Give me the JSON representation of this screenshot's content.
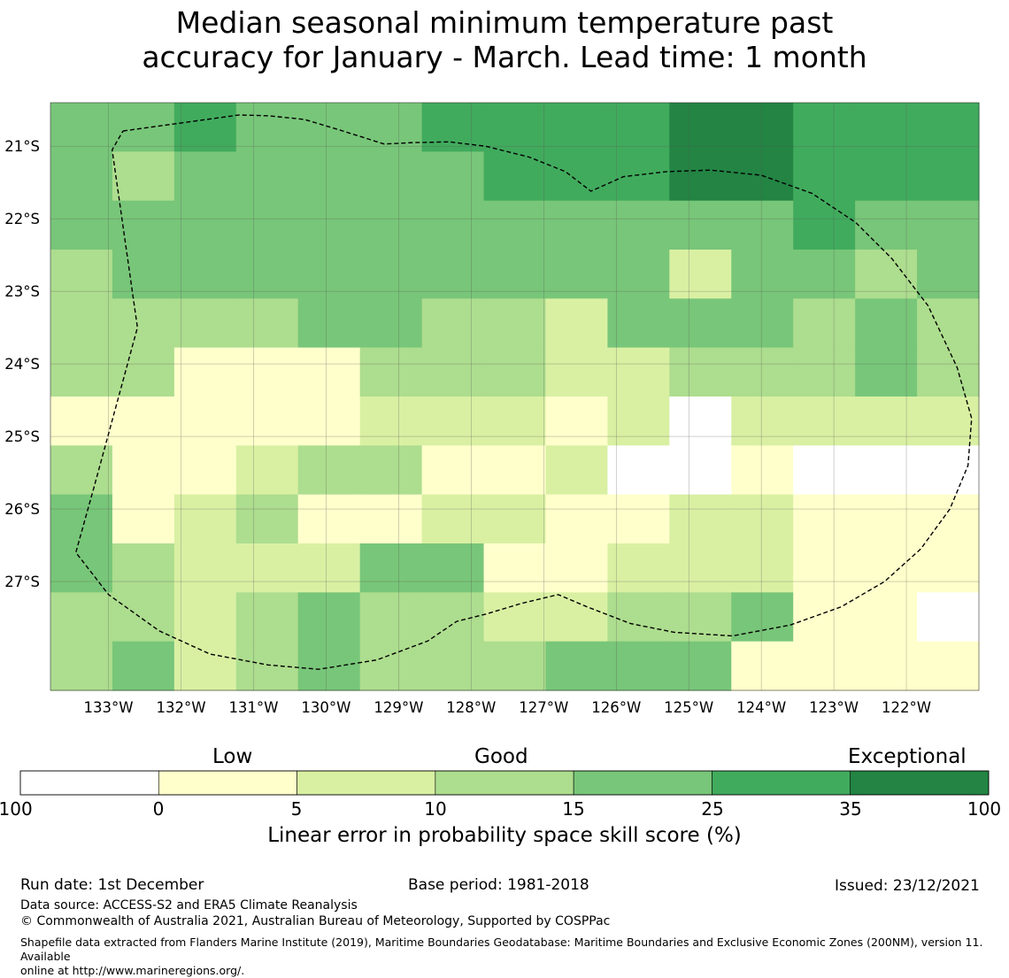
{
  "title": {
    "line1": "Median seasonal minimum temperature past",
    "line2": "accuracy for January - March. Lead time: 1 month"
  },
  "map": {
    "lon_range": [
      -133.8,
      -121.0
    ],
    "lat_range": [
      -28.5,
      -20.4
    ],
    "lon_ticks": [
      "133°W",
      "132°W",
      "131°W",
      "130°W",
      "129°W",
      "128°W",
      "127°W",
      "126°W",
      "125°W",
      "124°W",
      "123°W",
      "122°W"
    ],
    "lat_ticks": [
      "21°S",
      "22°S",
      "23°S",
      "24°S",
      "25°S",
      "26°S",
      "27°S"
    ],
    "cell_size_deg": [
      0.833,
      0.556
    ],
    "grid_columns": 15,
    "grid_rows": 12,
    "skill_category_grid": [
      "445444555566555",
      "434444455566555",
      "444444444444544",
      "344444444424434",
      "333344332444343",
      "331113332233343",
      "111112221202222",
      "311233112001000",
      "412311221122111",
      "432224411222111",
      "332343322334110",
      "342343334441111"
    ],
    "categories": [
      "below 0",
      "0 to 5",
      "5 to 10",
      "10 to 15",
      "15 to 25",
      "25 to 35",
      "35 to 100"
    ],
    "category_colors": [
      "#ffffff",
      "#ffffcc",
      "#d9f0a3",
      "#addd8e",
      "#78c679",
      "#41ab5d",
      "#238443"
    ],
    "boundary_lonlat": [
      [
        -132.8,
        -20.79
      ],
      [
        -131.2,
        -20.57
      ],
      [
        -130.8,
        -20.58
      ],
      [
        -130.3,
        -20.63
      ],
      [
        -129.8,
        -20.78
      ],
      [
        -129.2,
        -20.97
      ],
      [
        -128.8,
        -20.95
      ],
      [
        -128.3,
        -20.94
      ],
      [
        -127.8,
        -21.0
      ],
      [
        -127.2,
        -21.15
      ],
      [
        -126.7,
        -21.35
      ],
      [
        -126.35,
        -21.62
      ],
      [
        -125.9,
        -21.42
      ],
      [
        -125.3,
        -21.35
      ],
      [
        -124.7,
        -21.33
      ],
      [
        -124.0,
        -21.4
      ],
      [
        -123.3,
        -21.65
      ],
      [
        -122.7,
        -22.05
      ],
      [
        -122.2,
        -22.55
      ],
      [
        -121.7,
        -23.2
      ],
      [
        -121.3,
        -24.05
      ],
      [
        -121.1,
        -24.75
      ],
      [
        -121.15,
        -25.4
      ],
      [
        -121.4,
        -26.0
      ],
      [
        -121.8,
        -26.55
      ],
      [
        -122.3,
        -27.0
      ],
      [
        -122.9,
        -27.35
      ],
      [
        -123.6,
        -27.6
      ],
      [
        -124.4,
        -27.75
      ],
      [
        -125.2,
        -27.7
      ],
      [
        -125.8,
        -27.58
      ],
      [
        -126.4,
        -27.35
      ],
      [
        -126.8,
        -27.18
      ],
      [
        -127.3,
        -27.3
      ],
      [
        -127.8,
        -27.45
      ],
      [
        -128.2,
        -27.55
      ],
      [
        -128.6,
        -27.82
      ],
      [
        -129.3,
        -28.08
      ],
      [
        -130.1,
        -28.21
      ],
      [
        -130.8,
        -28.15
      ],
      [
        -131.6,
        -28.0
      ],
      [
        -132.3,
        -27.68
      ],
      [
        -133.0,
        -27.18
      ],
      [
        -133.45,
        -26.6
      ],
      [
        -133.2,
        -25.7
      ],
      [
        -132.6,
        -23.5
      ],
      [
        -132.95,
        -21.05
      ],
      [
        -132.8,
        -20.79
      ]
    ],
    "boundary_dash_color": "#000000"
  },
  "colorbar": {
    "headers": [
      "Low",
      "Good",
      "Exceptional"
    ],
    "tick_labels": [
      "-100",
      "0",
      "5",
      "10",
      "15",
      "25",
      "35",
      "100"
    ],
    "label": "Linear error in probability space skill score (%)"
  },
  "footer": {
    "run_date": "Run date: 1st December",
    "base_period": "Base period: 1981-2018",
    "issued": "Issued: 23/12/2021",
    "data_source": "Data source: ACCESS-S2 and ERA5 Climate Reanalysis",
    "copyright": "© Commonwealth of Australia 2021, Australian Bureau of Meteorology, Supported by COSPPac",
    "shapefile_line1": "Shapefile data extracted from Flanders Marine Institute (2019), Maritime Boundaries Geodatabase: Maritime Boundaries and Exclusive Economic Zones (200NM), version 11. Available",
    "shapefile_line2": "online at http://www.marineregions.org/."
  }
}
